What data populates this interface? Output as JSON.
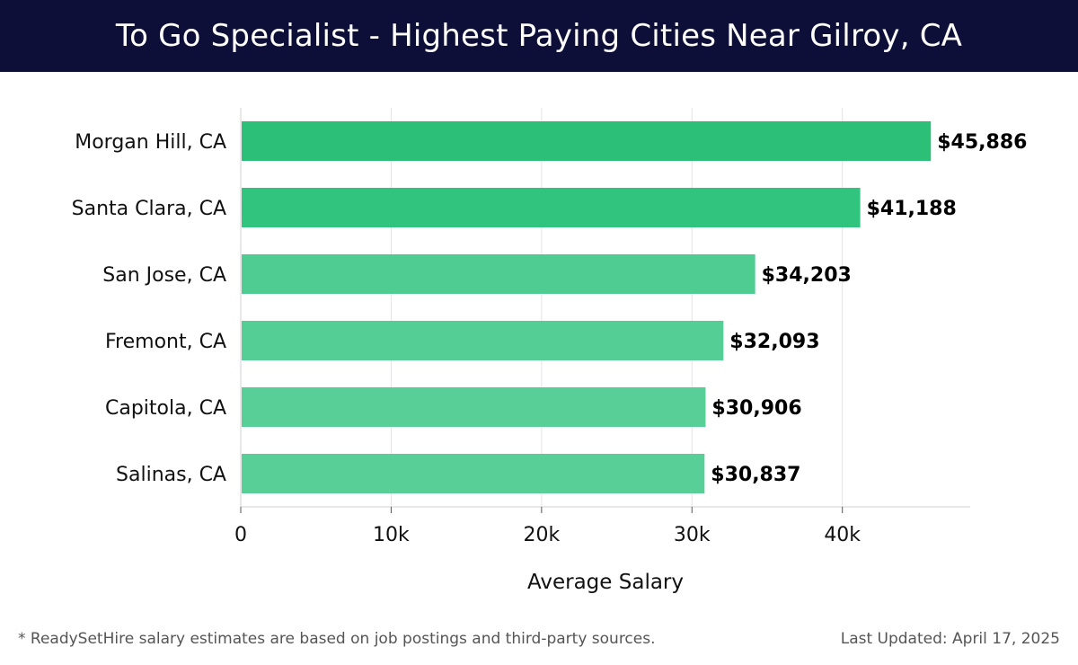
{
  "header": {
    "title": "To Go Specialist - Highest Paying Cities Near Gilroy, CA"
  },
  "chart_data": {
    "type": "bar",
    "orientation": "horizontal",
    "categories": [
      "Morgan Hill, CA",
      "Santa Clara, CA",
      "San Jose, CA",
      "Fremont, CA",
      "Capitola, CA",
      "Salinas, CA"
    ],
    "values": [
      45886,
      41188,
      34203,
      32093,
      30906,
      30837
    ],
    "data_labels": [
      "$45,886",
      "$41,188",
      "$34,203",
      "$32,093",
      "$30,906",
      "$30,837"
    ],
    "xlabel": "Average Salary",
    "ylabel": "",
    "xlim": [
      0,
      48500
    ],
    "x_ticks": [
      0,
      10000,
      20000,
      30000,
      40000
    ],
    "x_tick_labels": [
      "0",
      "10k",
      "20k",
      "30k",
      "40k"
    ],
    "grid": "vertical",
    "legend": "none",
    "bar_colors": [
      "#2bbf78",
      "#31c47e",
      "#4fcc91",
      "#55ce95",
      "#58cf97",
      "#58cf97"
    ]
  },
  "footer": {
    "note": "* ReadySetHire salary estimates are based on job postings and third-party sources.",
    "updated": "Last Updated: April 17, 2025"
  }
}
